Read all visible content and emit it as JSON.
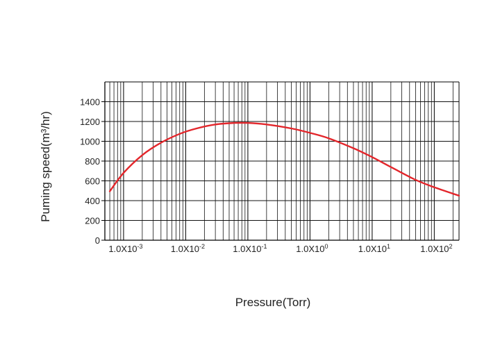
{
  "chart_data": {
    "type": "line",
    "title": "",
    "xlabel": "Pressure(Torr)",
    "ylabel": "Puming speed(m³/hr)",
    "x_scale": "log",
    "xlim": [
      0.0005,
      250
    ],
    "ylim": [
      0,
      1600
    ],
    "grid": true,
    "legend": "none",
    "y_ticks": [
      0,
      200,
      400,
      600,
      800,
      1000,
      1200,
      1400
    ],
    "x_ticks": [
      {
        "value": 0.001,
        "label": "1.0X10",
        "exp": "-3"
      },
      {
        "value": 0.01,
        "label": "1.0X10",
        "exp": "-2"
      },
      {
        "value": 0.1,
        "label": "1.0X10",
        "exp": "-1"
      },
      {
        "value": 1,
        "label": "1.0X10",
        "exp": "0"
      },
      {
        "value": 10,
        "label": "1.0X10",
        "exp": "1"
      },
      {
        "value": 100,
        "label": "1.0X10",
        "exp": "2"
      }
    ],
    "series": [
      {
        "color": "#e3262b",
        "x": [
          0.0006,
          0.001,
          0.002,
          0.004,
          0.008,
          0.015,
          0.03,
          0.06,
          0.1,
          0.2,
          0.5,
          1,
          2,
          5,
          10,
          20,
          50,
          100,
          250
        ],
        "y": [
          495,
          680,
          860,
          985,
          1075,
          1130,
          1170,
          1185,
          1185,
          1170,
          1130,
          1085,
          1030,
          930,
          840,
          740,
          610,
          535,
          450
        ]
      }
    ]
  }
}
